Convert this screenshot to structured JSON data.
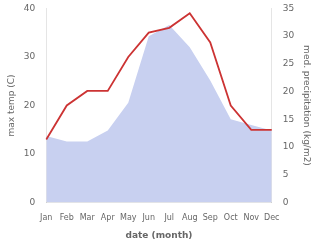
{
  "chart_data": {
    "type": "line",
    "xlabel": "date (month)",
    "ylabel": "max temp (C)",
    "y2label": "med. precipitation (kg/m2)",
    "categories": [
      "Jan",
      "Feb",
      "Mar",
      "Apr",
      "May",
      "Jun",
      "Jul",
      "Aug",
      "Sep",
      "Oct",
      "Nov",
      "Dec"
    ],
    "series": [
      {
        "type": "area",
        "color": "#c8d0f0",
        "axis": "y2",
        "values": [
          12,
          11,
          11,
          13,
          18,
          30,
          32,
          28,
          22,
          15,
          14,
          13
        ]
      },
      {
        "type": "line",
        "color": "#cc3333",
        "values": [
          13,
          20,
          23,
          23,
          30,
          35,
          36,
          39,
          33,
          20,
          15,
          15
        ]
      }
    ],
    "ylim": [
      0,
      40
    ],
    "yticks": [
      0,
      10,
      20,
      30,
      40
    ],
    "y2lim": [
      0,
      35
    ],
    "y2ticks": [
      0,
      5,
      10,
      15,
      20,
      25,
      30,
      35
    ],
    "grid": false
  }
}
